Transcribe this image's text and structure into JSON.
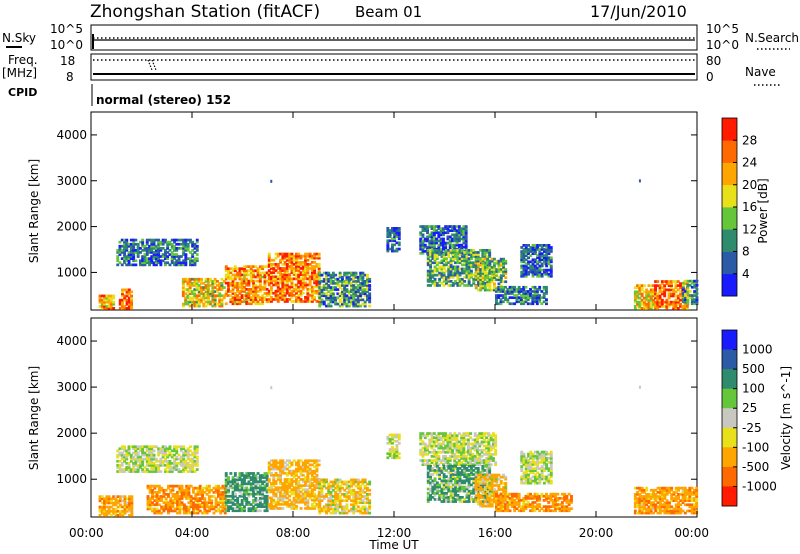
{
  "header": {
    "station": "Zhongshan Station (fitACF)",
    "beam": "Beam 01",
    "date": "17/Jun/2010"
  },
  "top_panels": {
    "nsky_label": "N.Sky",
    "nsearch_label": "N.Search",
    "nsky_ticks": [
      "10^5",
      "10^0"
    ],
    "nsearch_ticks": [
      "10^5",
      "10^0"
    ],
    "freq_label": "Freq.",
    "freq_unit": "[MHz]",
    "freq_ticks": [
      "18",
      "8"
    ],
    "nave_label": "Nave",
    "nave_ticks": [
      "80",
      "0"
    ],
    "cpid_label": "CPID",
    "cpid_text": "normal (stereo) 152"
  },
  "chart_data": [
    {
      "type": "heatmap",
      "name": "power",
      "ylabel": "Slant Range [km]",
      "xlim": [
        0,
        24
      ],
      "ylim": [
        180,
        4500
      ],
      "y_ticks": [
        1000,
        2000,
        3000,
        4000
      ],
      "colorbar": {
        "label": "Power [dB]",
        "ticks": [
          "4",
          "8",
          "12",
          "16",
          "20",
          "24",
          "28"
        ],
        "colors": [
          "#1a1aff",
          "#2b5aa6",
          "#2e8b6e",
          "#66c63a",
          "#e8e01a",
          "#ffa500",
          "#ff6a00",
          "#ff1a00"
        ]
      },
      "echo_regions": [
        {
          "t0": 0.3,
          "t1": 0.9,
          "r0": 200,
          "r1": 500,
          "v": 22
        },
        {
          "t0": 1.1,
          "t1": 1.6,
          "r0": 200,
          "r1": 650,
          "v": 26
        },
        {
          "t0": 1.0,
          "t1": 4.2,
          "r0": 1150,
          "r1": 1700,
          "v": 7
        },
        {
          "t0": 3.6,
          "t1": 5.3,
          "r0": 250,
          "r1": 850,
          "v": 19
        },
        {
          "t0": 5.3,
          "t1": 7.0,
          "r0": 300,
          "r1": 1150,
          "v": 23
        },
        {
          "t0": 7.0,
          "t1": 9.0,
          "r0": 350,
          "r1": 1400,
          "v": 25
        },
        {
          "t0": 9.0,
          "t1": 11.0,
          "r0": 250,
          "r1": 1000,
          "v": 10
        },
        {
          "t0": 11.7,
          "t1": 12.2,
          "r0": 1450,
          "r1": 1950,
          "v": 6
        },
        {
          "t0": 13.0,
          "t1": 14.8,
          "r0": 1400,
          "r1": 2000,
          "v": 7
        },
        {
          "t0": 13.3,
          "t1": 15.8,
          "r0": 700,
          "r1": 1500,
          "v": 12
        },
        {
          "t0": 15.2,
          "t1": 16.4,
          "r0": 600,
          "r1": 1300,
          "v": 14
        },
        {
          "t0": 16.0,
          "t1": 18.0,
          "r0": 300,
          "r1": 700,
          "v": 8
        },
        {
          "t0": 17.0,
          "t1": 18.2,
          "r0": 900,
          "r1": 1600,
          "v": 7
        },
        {
          "t0": 21.5,
          "t1": 22.3,
          "r0": 200,
          "r1": 700,
          "v": 20
        },
        {
          "t0": 22.3,
          "t1": 23.6,
          "r0": 200,
          "r1": 800,
          "v": 26
        },
        {
          "t0": 23.4,
          "t1": 24.0,
          "r0": 300,
          "r1": 800,
          "v": 10
        }
      ]
    },
    {
      "type": "heatmap",
      "name": "velocity",
      "xlabel": "Time UT",
      "ylabel": "Slant Range [km]",
      "xlim": [
        0,
        24
      ],
      "ylim": [
        180,
        4500
      ],
      "y_ticks": [
        1000,
        2000,
        3000,
        4000
      ],
      "x_ticks": [
        "00:00",
        "04:00",
        "08:00",
        "12:00",
        "16:00",
        "20:00",
        "00:00"
      ],
      "colorbar": {
        "label": "Velocity [m s^-1]",
        "ticks": [
          "1000",
          "500",
          "100",
          "25",
          "-25",
          "-100",
          "-500",
          "-1000"
        ],
        "colors": [
          "#1a1aff",
          "#2b5aa6",
          "#2e8b6e",
          "#66c63a",
          "#c8c8c0",
          "#e8e01a",
          "#ffa500",
          "#ff6a00",
          "#ff1a00"
        ]
      },
      "echo_regions": [
        {
          "t0": 0.3,
          "t1": 1.6,
          "r0": 200,
          "r1": 650,
          "v": -300
        },
        {
          "t0": 1.0,
          "t1": 4.2,
          "r0": 1150,
          "r1": 1700,
          "v": 0
        },
        {
          "t0": 2.2,
          "t1": 5.3,
          "r0": 250,
          "r1": 850,
          "v": -400
        },
        {
          "t0": 5.3,
          "t1": 7.0,
          "r0": 300,
          "r1": 1150,
          "v": 200
        },
        {
          "t0": 7.0,
          "t1": 9.0,
          "r0": 350,
          "r1": 1400,
          "v": -200
        },
        {
          "t0": 9.0,
          "t1": 11.0,
          "r0": 250,
          "r1": 1000,
          "v": -80
        },
        {
          "t0": 11.7,
          "t1": 12.2,
          "r0": 1450,
          "r1": 1950,
          "v": 0
        },
        {
          "t0": 13.0,
          "t1": 16.0,
          "r0": 1300,
          "r1": 2000,
          "v": 0
        },
        {
          "t0": 13.3,
          "t1": 15.8,
          "r0": 500,
          "r1": 1300,
          "v": 120
        },
        {
          "t0": 15.2,
          "t1": 16.4,
          "r0": 400,
          "r1": 1100,
          "v": -150
        },
        {
          "t0": 16.0,
          "t1": 19.0,
          "r0": 300,
          "r1": 700,
          "v": -400
        },
        {
          "t0": 17.0,
          "t1": 18.2,
          "r0": 900,
          "r1": 1600,
          "v": 0
        },
        {
          "t0": 21.5,
          "t1": 24.0,
          "r0": 250,
          "r1": 800,
          "v": -350
        }
      ]
    }
  ]
}
